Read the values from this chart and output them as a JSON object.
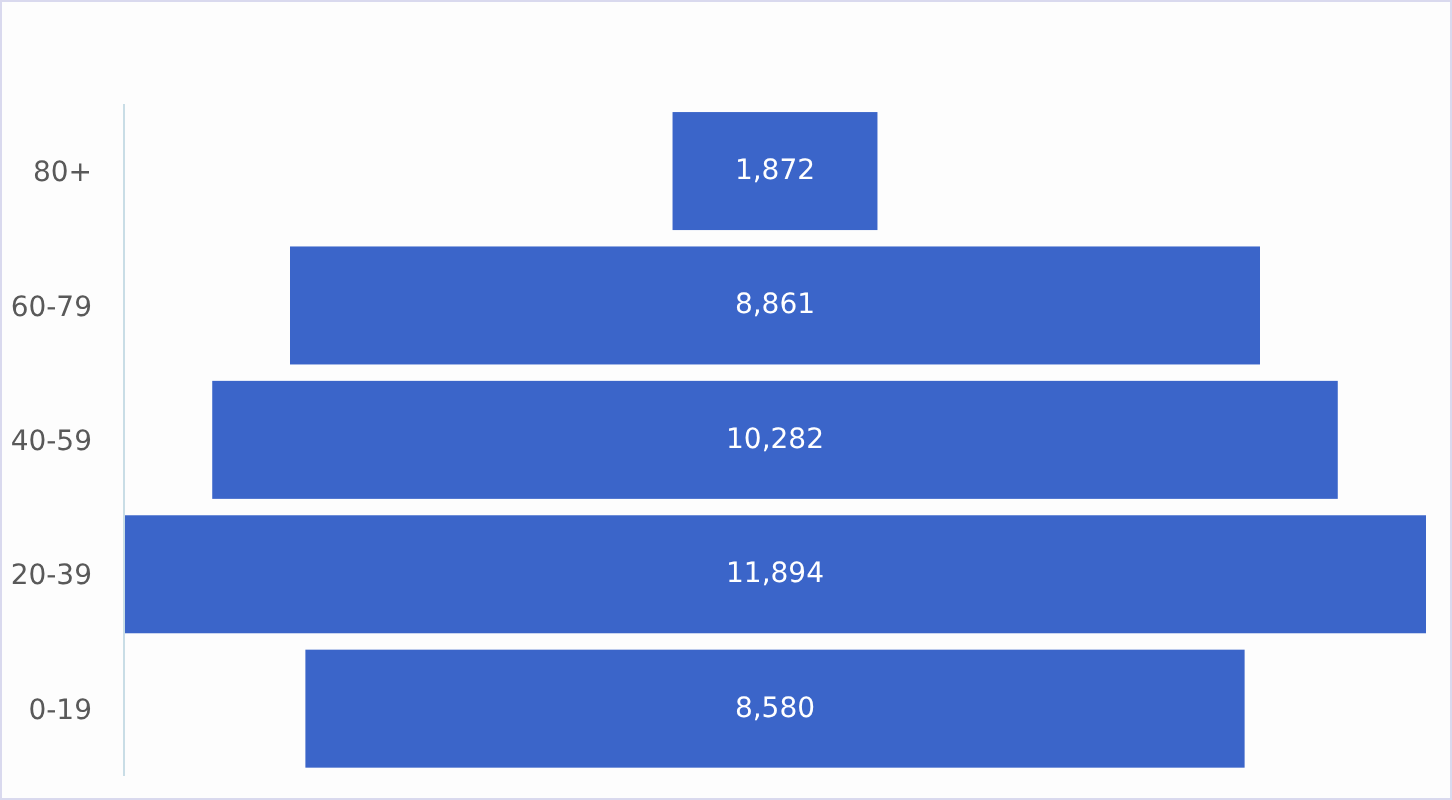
{
  "chart_data": {
    "type": "other",
    "categories": [
      "80+",
      "60-79",
      "40-59",
      "20-39",
      "0-19"
    ],
    "values": [
      1872,
      8861,
      10282,
      11894,
      8580
    ],
    "value_labels": [
      "1,872",
      "8,861",
      "10,282",
      "11,894",
      "8,580"
    ],
    "color": "#3b65c9"
  }
}
